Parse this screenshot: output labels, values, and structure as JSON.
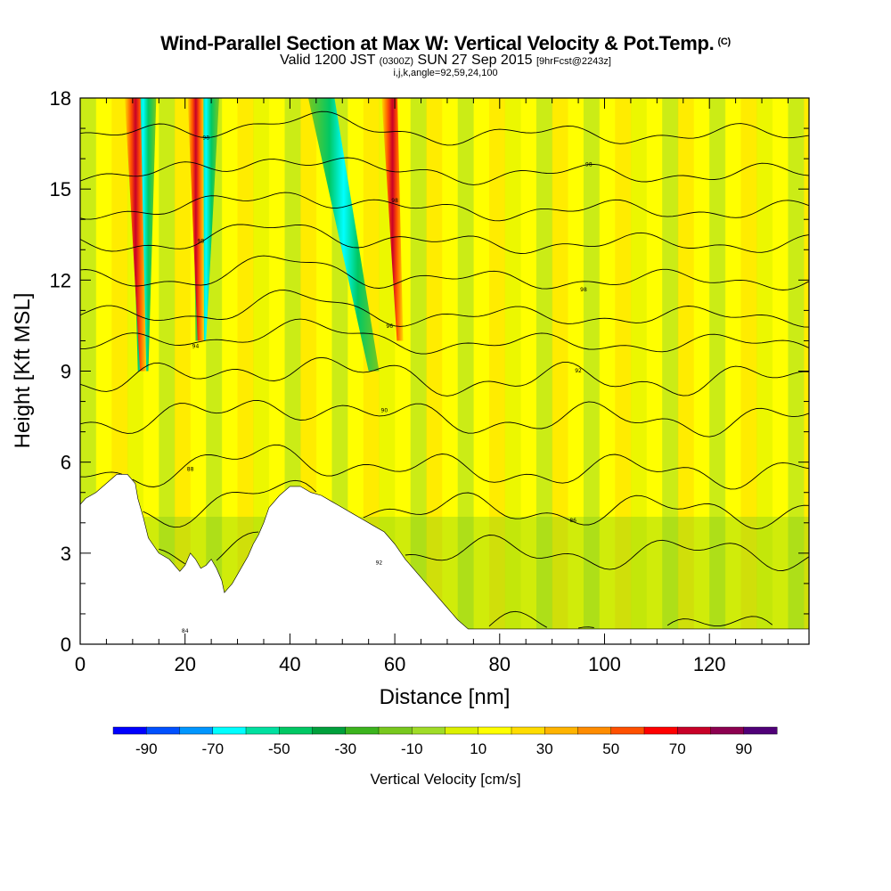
{
  "header": {
    "title": "Wind-Parallel Section at Max W: Vertical Velocity & Pot.Temp.",
    "copyright": "(C)",
    "valid_prefix": "Valid 1200 JST",
    "valid_utc": "(0300Z)",
    "valid_date": "SUN 27 Sep 2015",
    "forecast": "[9hrFcst@2243z]",
    "indices": "i,j,k,angle=92,59,24,100"
  },
  "colorbar": {
    "title": "Vertical Velocity [cm/s]",
    "bounds": [
      -100,
      -90,
      -80,
      -70,
      -60,
      -50,
      -40,
      -30,
      -20,
      -10,
      0,
      10,
      20,
      30,
      40,
      50,
      60,
      70,
      80,
      90,
      100
    ],
    "colors": [
      "#0000ff",
      "#0050ff",
      "#0096ff",
      "#00ffff",
      "#00e0a0",
      "#00c864",
      "#00a03c",
      "#3cb41e",
      "#78c81e",
      "#a0dc28",
      "#dcf000",
      "#ffff00",
      "#ffdc00",
      "#ffb400",
      "#ff8c00",
      "#ff5000",
      "#ff0000",
      "#c80028",
      "#8c0050",
      "#500078"
    ],
    "tick_labels": [
      "-90",
      "-70",
      "-50",
      "-30",
      "-10",
      "10",
      "30",
      "50",
      "70",
      "90"
    ]
  },
  "chart_data": {
    "type": "heatmap",
    "title": "Wind-Parallel Section at Max W: Vertical Velocity & Pot.Temp.",
    "xlabel": "Distance [nm]",
    "ylabel": "Height [Kft MSL]",
    "xlim": [
      0,
      139
    ],
    "ylim": [
      0,
      18
    ],
    "x_ticks": [
      0,
      20,
      40,
      60,
      80,
      100,
      120
    ],
    "y_ticks": [
      0,
      3,
      6,
      9,
      12,
      15,
      18
    ],
    "x_tick_labels": [
      "0",
      "20",
      "40",
      "60",
      "80",
      "100",
      "120"
    ],
    "y_tick_labels": [
      "0",
      "3",
      "6",
      "9",
      "12",
      "15",
      "18"
    ],
    "grid": false,
    "variable": "Vertical Velocity [cm/s]",
    "overlay": "Potential temperature contours",
    "terrain_profile": {
      "x": [
        0,
        1,
        3,
        5,
        7,
        9,
        10.5,
        11,
        12,
        13,
        15,
        17,
        18,
        19,
        20,
        21,
        22,
        23,
        24,
        25,
        26,
        27,
        27.5,
        28,
        29,
        30,
        31,
        32,
        33,
        34,
        35,
        36,
        38,
        40,
        42,
        44,
        46,
        48,
        50,
        52,
        54,
        56,
        58,
        60,
        62,
        64,
        66,
        68,
        70,
        72,
        74,
        80,
        100,
        110,
        125,
        128,
        130,
        132,
        134,
        136,
        138,
        139
      ],
      "y": [
        4.6,
        4.8,
        5.0,
        5.3,
        5.6,
        5.6,
        5.3,
        4.8,
        4.2,
        3.5,
        3.0,
        2.8,
        2.6,
        2.4,
        2.6,
        3.0,
        2.8,
        2.5,
        2.6,
        2.8,
        2.5,
        2.1,
        1.7,
        1.8,
        2.0,
        2.3,
        2.6,
        2.9,
        3.3,
        3.6,
        4.0,
        4.5,
        4.9,
        5.2,
        5.2,
        5.0,
        4.9,
        4.7,
        4.5,
        4.3,
        4.1,
        3.9,
        3.7,
        3.3,
        2.8,
        2.4,
        2.0,
        1.6,
        1.2,
        0.8,
        0.5,
        0.5,
        0.5,
        0.5,
        0.5,
        0.5,
        0.5,
        0.5,
        0.5,
        0.5,
        0.5,
        0.5
      ]
    },
    "updraft_bands": [
      {
        "x_top": 10,
        "x_bottom": 12,
        "y_bottom": 9,
        "value": 60
      },
      {
        "x_top": 22,
        "x_bottom": 23,
        "y_bottom": 10,
        "value": 40
      },
      {
        "x_top": 59,
        "x_bottom": 61,
        "y_bottom": 10,
        "value": 90
      }
    ],
    "downdraft_bands": [
      {
        "x_top": 12,
        "x_bottom": 12,
        "y_bottom": 9,
        "value": -50
      },
      {
        "x_top": 24,
        "x_bottom": 23,
        "y_bottom": 10,
        "value": -50
      },
      {
        "x_top": 46,
        "x_bottom": 56,
        "y_bottom": 9,
        "value": -50
      }
    ],
    "theta_levels": [
      {
        "base_y": 0.5,
        "label": "84"
      },
      {
        "base_y": 3.0,
        "label": "92"
      },
      {
        "base_y": 4.4,
        "label": "86"
      },
      {
        "base_y": 5.7,
        "label": "88"
      },
      {
        "base_y": 7.4,
        "label": "90"
      },
      {
        "base_y": 8.7,
        "label": "92"
      },
      {
        "base_y": 9.9,
        "label": "94"
      },
      {
        "base_y": 10.8,
        "label": "96"
      },
      {
        "base_y": 12.0,
        "label": "98"
      },
      {
        "base_y": 13.2,
        "label": "98"
      },
      {
        "base_y": 14.3,
        "label": "98"
      },
      {
        "base_y": 15.5,
        "label": "98"
      },
      {
        "base_y": 16.8,
        "label": "98"
      }
    ]
  }
}
